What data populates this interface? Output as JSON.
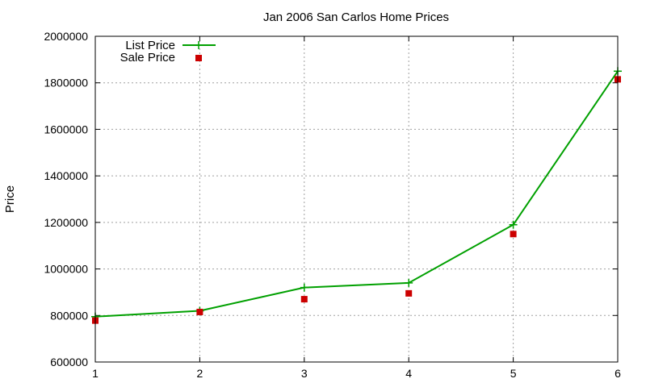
{
  "chart_data": {
    "type": "line",
    "title": "Jan 2006 San Carlos Home Prices",
    "xlabel": "",
    "ylabel": "Price",
    "x": [
      1,
      2,
      3,
      4,
      5,
      6
    ],
    "xlim": [
      1,
      6
    ],
    "ylim": [
      600000,
      2000000
    ],
    "x_ticks": [
      "1",
      "2",
      "3",
      "4",
      "5",
      "6"
    ],
    "y_ticks": [
      "600000",
      "800000",
      "1000000",
      "1200000",
      "1400000",
      "1600000",
      "1800000",
      "2000000"
    ],
    "grid": true,
    "legend_position": "top-left",
    "series": [
      {
        "name": "List Price",
        "style": "line-points",
        "color": "#00a000",
        "values": [
          795000,
          820000,
          920000,
          940000,
          1190000,
          1850000
        ]
      },
      {
        "name": "Sale Price",
        "style": "points",
        "color": "#cc0000",
        "values": [
          778000,
          815000,
          870000,
          895000,
          1150000,
          1815000
        ]
      }
    ]
  }
}
